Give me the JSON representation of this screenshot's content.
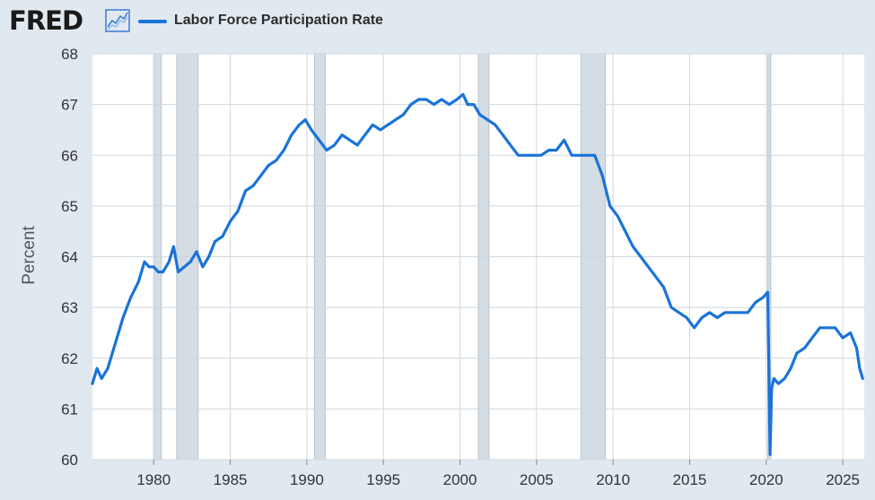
{
  "header": {
    "logo_text": "FRED",
    "logo_icon": "trend-chart-icon",
    "legend_label": "Labor Force Participation Rate"
  },
  "colors": {
    "line": "#1a73d9",
    "recession": "#d4dde4",
    "background": "#e1e9f0",
    "plot_background": "#ffffff",
    "grid": "#cfd8e0"
  },
  "chart_data": {
    "type": "line",
    "title": "",
    "xlabel": "",
    "ylabel": "Percent",
    "ylim": [
      60,
      68
    ],
    "xlim": [
      1976.0,
      2026.4
    ],
    "grid": true,
    "legend_position": "top-left",
    "yticks": [
      60,
      61,
      62,
      63,
      64,
      65,
      66,
      67,
      68
    ],
    "xticks": [
      1980,
      1985,
      1990,
      1995,
      2000,
      2005,
      2010,
      2015,
      2020,
      2025
    ],
    "recessions": [
      [
        1980.0,
        1980.5
      ],
      [
        1981.5,
        1982.9
      ],
      [
        1990.5,
        1991.2
      ],
      [
        2001.2,
        2001.9
      ],
      [
        2007.9,
        2009.5
      ],
      [
        2020.1,
        2020.3
      ]
    ],
    "series": [
      {
        "name": "Labor Force Participation Rate",
        "x": [
          1976.0,
          1976.3,
          1976.6,
          1977.0,
          1977.5,
          1978.0,
          1978.5,
          1979.0,
          1979.4,
          1979.7,
          1980.0,
          1980.3,
          1980.6,
          1981.0,
          1981.3,
          1981.6,
          1982.0,
          1982.4,
          1982.8,
          1983.2,
          1983.6,
          1984.0,
          1984.5,
          1985.0,
          1985.5,
          1986.0,
          1986.5,
          1987.0,
          1987.5,
          1988.0,
          1988.5,
          1989.0,
          1989.5,
          1989.9,
          1990.3,
          1990.8,
          1991.3,
          1991.8,
          1992.3,
          1992.8,
          1993.3,
          1993.8,
          1994.3,
          1994.8,
          1995.3,
          1995.8,
          1996.3,
          1996.8,
          1997.3,
          1997.8,
          1998.3,
          1998.8,
          1999.3,
          1999.8,
          2000.2,
          2000.5,
          2000.9,
          2001.3,
          2001.8,
          2002.3,
          2002.8,
          2003.3,
          2003.8,
          2004.3,
          2004.8,
          2005.3,
          2005.8,
          2006.3,
          2006.8,
          2007.3,
          2007.8,
          2008.3,
          2008.8,
          2009.3,
          2009.8,
          2010.3,
          2010.8,
          2011.3,
          2011.8,
          2012.3,
          2012.8,
          2013.3,
          2013.8,
          2014.3,
          2014.8,
          2015.3,
          2015.8,
          2016.3,
          2016.8,
          2017.3,
          2017.8,
          2018.3,
          2018.8,
          2019.3,
          2019.8,
          2020.1,
          2020.25,
          2020.35,
          2020.5,
          2020.8,
          2021.2,
          2021.6,
          2022.0,
          2022.5,
          2023.0,
          2023.5,
          2024.0,
          2024.5,
          2025.0,
          2025.5,
          2025.9,
          2026.1,
          2026.3
        ],
        "values": [
          61.5,
          61.8,
          61.6,
          61.8,
          62.3,
          62.8,
          63.2,
          63.5,
          63.9,
          63.8,
          63.8,
          63.7,
          63.7,
          63.9,
          64.2,
          63.7,
          63.8,
          63.9,
          64.1,
          63.8,
          64.0,
          64.3,
          64.4,
          64.7,
          64.9,
          65.3,
          65.4,
          65.6,
          65.8,
          65.9,
          66.1,
          66.4,
          66.6,
          66.7,
          66.5,
          66.3,
          66.1,
          66.2,
          66.4,
          66.3,
          66.2,
          66.4,
          66.6,
          66.5,
          66.6,
          66.7,
          66.8,
          67.0,
          67.1,
          67.1,
          67.0,
          67.1,
          67.0,
          67.1,
          67.2,
          67.0,
          67.0,
          66.8,
          66.7,
          66.6,
          66.4,
          66.2,
          66.0,
          66.0,
          66.0,
          66.0,
          66.1,
          66.1,
          66.3,
          66.0,
          66.0,
          66.0,
          66.0,
          65.6,
          65.0,
          64.8,
          64.5,
          64.2,
          64.0,
          63.8,
          63.6,
          63.4,
          63.0,
          62.9,
          62.8,
          62.6,
          62.8,
          62.9,
          62.8,
          62.9,
          62.9,
          62.9,
          62.9,
          63.1,
          63.2,
          63.3,
          60.1,
          61.4,
          61.6,
          61.5,
          61.6,
          61.8,
          62.1,
          62.2,
          62.4,
          62.6,
          62.6,
          62.6,
          62.4,
          62.5,
          62.2,
          61.8,
          61.6
        ]
      }
    ]
  }
}
